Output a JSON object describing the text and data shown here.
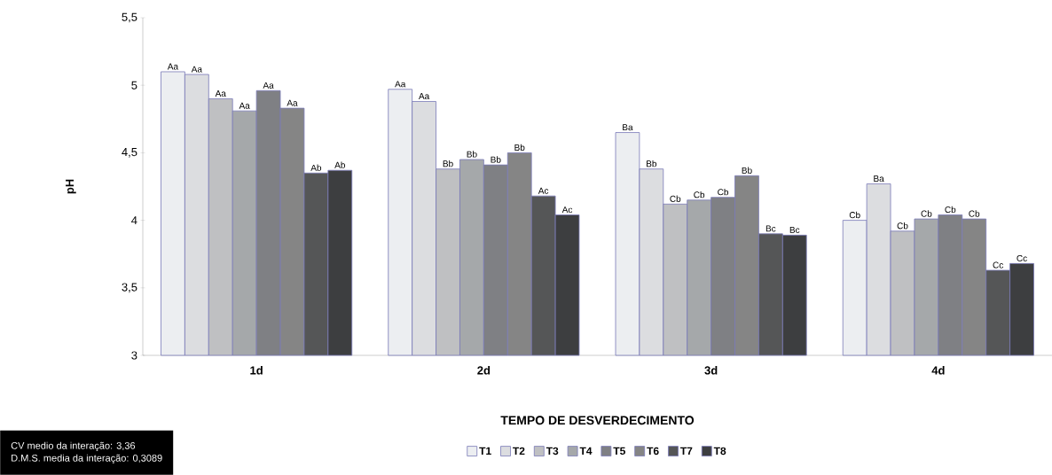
{
  "chart_data": {
    "type": "bar",
    "xlabel": "TEMPO DE DESVERDECIMENTO",
    "ylabel": "pH",
    "categories": [
      "1d",
      "2d",
      "3d",
      "4d"
    ],
    "ylim": [
      3,
      5.5
    ],
    "yticks": [
      3,
      {
        "value": 3.5,
        "label": "3,5"
      },
      4,
      {
        "value": 4.5,
        "label": "4,5"
      },
      5,
      {
        "value": 5.5,
        "label": "5,5"
      }
    ],
    "legend": "bottom",
    "series": [
      {
        "name": "T1",
        "color": "#eceef1",
        "values": [
          5.1,
          4.97,
          4.65,
          4.0
        ],
        "value_labels": [
          "Aa",
          "Aa",
          "Ba",
          "Cb"
        ]
      },
      {
        "name": "T2",
        "color": "#dcdde0",
        "values": [
          5.08,
          4.88,
          4.38,
          4.27
        ],
        "value_labels": [
          "Aa",
          "Aa",
          "Bb",
          "Ba"
        ]
      },
      {
        "name": "T3",
        "color": "#bfc0c2",
        "values": [
          4.9,
          4.38,
          4.12,
          3.92
        ],
        "value_labels": [
          "Aa",
          "Bb",
          "Cb",
          "Cb"
        ]
      },
      {
        "name": "T4",
        "color": "#a5a8aa",
        "values": [
          4.81,
          4.45,
          4.15,
          4.01
        ],
        "value_labels": [
          "Aa",
          "Bb",
          "Cb",
          "Cb"
        ]
      },
      {
        "name": "T5",
        "color": "#7f8084",
        "values": [
          4.96,
          4.41,
          4.17,
          4.04
        ],
        "value_labels": [
          "Aa",
          "Bb",
          "Cb",
          "Cb"
        ]
      },
      {
        "name": "T6",
        "color": "#858585",
        "values": [
          4.83,
          4.5,
          4.33,
          4.01
        ],
        "value_labels": [
          "Aa",
          "Bb",
          "Bb",
          "Cb"
        ]
      },
      {
        "name": "T7",
        "color": "#555657",
        "values": [
          4.35,
          4.18,
          3.9,
          3.63
        ],
        "value_labels": [
          "Ab",
          "Ac",
          "Bc",
          "Cc"
        ]
      },
      {
        "name": "T8",
        "color": "#3d3e40",
        "values": [
          4.37,
          4.04,
          3.89,
          3.68
        ],
        "value_labels": [
          "Ab",
          "Ac",
          "Bc",
          "Cc"
        ]
      }
    ],
    "annotations": [
      "CV medio da interação: 3,36",
      "D.M.S. media da interação: 0,3089"
    ]
  }
}
